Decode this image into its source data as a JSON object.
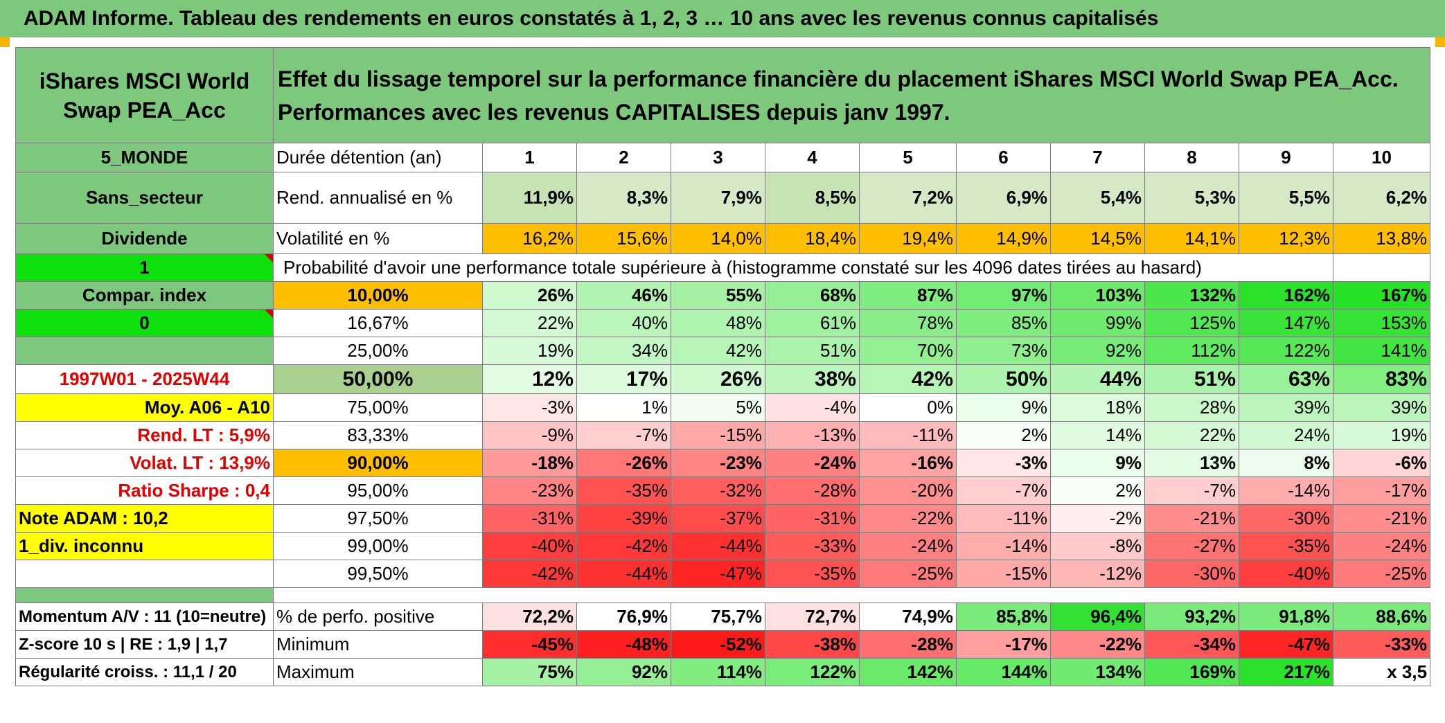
{
  "title": "ADAM Informe. Tableau des rendements en euros constatés à 1, 2, 3 … 10 ans avec les revenus connus capitalisés",
  "fund_name": "iShares MSCI World Swap PEA_Acc",
  "description": "Effet du lissage temporel sur la performance financière du placement iShares MSCI World Swap PEA_Acc. Performances avec les revenus CAPITALISES depuis janv 1997.",
  "left_col": {
    "zone": "5_MONDE",
    "sector": "Sans_secteur",
    "income": "Dividende",
    "flag1": "1",
    "compar": "Compar. index",
    "flag0": "0",
    "period": "1997W01 - 2025W44",
    "avg": "Moy. A06 - A10",
    "rend_lt": "Rend. LT :   5,9%",
    "volat_lt": "Volat. LT :   13,9%",
    "sharpe": "Ratio Sharpe :    0,4",
    "note": "Note ADAM : 10,2",
    "div": "1_div. inconnu",
    "momentum": "Momentum A/V : 11 (10=neutre)",
    "zscore": "Z-score 10 s | RE : 1,9 | 1,7",
    "regularite": "Régularité croiss. : 11,1 / 20"
  },
  "labels": {
    "duration": "Durée détention (an)",
    "rend": "Rend. annualisé en %",
    "vol": "Volatilité en %",
    "prob": "Probabilité d'avoir une performance totale supérieure à (histogramme constaté sur les 4096 dates tirées au hasard)",
    "pos": "% de perfo. positive",
    "min": "Minimum",
    "max": "Maximum"
  },
  "years": [
    "1",
    "2",
    "3",
    "4",
    "5",
    "6",
    "7",
    "8",
    "9",
    "10"
  ],
  "rend": [
    "11,9%",
    "8,3%",
    "7,9%",
    "8,5%",
    "7,2%",
    "6,9%",
    "5,4%",
    "5,3%",
    "5,5%",
    "6,2%"
  ],
  "vol": [
    "16,2%",
    "15,6%",
    "14,0%",
    "18,4%",
    "19,4%",
    "14,9%",
    "14,5%",
    "14,1%",
    "12,3%",
    "13,8%"
  ],
  "quantiles": [
    {
      "p": "10,00%",
      "vals": [
        "26%",
        "46%",
        "55%",
        "68%",
        "87%",
        "97%",
        "103%",
        "132%",
        "162%",
        "167%"
      ],
      "bold": true
    },
    {
      "p": "16,67%",
      "vals": [
        "22%",
        "40%",
        "48%",
        "61%",
        "78%",
        "85%",
        "99%",
        "125%",
        "147%",
        "153%"
      ],
      "bold": false
    },
    {
      "p": "25,00%",
      "vals": [
        "19%",
        "34%",
        "42%",
        "51%",
        "70%",
        "73%",
        "92%",
        "112%",
        "122%",
        "141%"
      ],
      "bold": false
    },
    {
      "p": "50,00%",
      "vals": [
        "12%",
        "17%",
        "26%",
        "38%",
        "42%",
        "50%",
        "44%",
        "51%",
        "63%",
        "83%"
      ],
      "bold": true
    },
    {
      "p": "75,00%",
      "vals": [
        "-3%",
        "1%",
        "5%",
        "-4%",
        "0%",
        "9%",
        "18%",
        "28%",
        "39%",
        "39%"
      ],
      "bold": false
    },
    {
      "p": "83,33%",
      "vals": [
        "-9%",
        "-7%",
        "-15%",
        "-13%",
        "-11%",
        "2%",
        "14%",
        "22%",
        "24%",
        "19%"
      ],
      "bold": false
    },
    {
      "p": "90,00%",
      "vals": [
        "-18%",
        "-26%",
        "-23%",
        "-24%",
        "-16%",
        "-3%",
        "9%",
        "13%",
        "8%",
        "-6%"
      ],
      "bold": true
    },
    {
      "p": "95,00%",
      "vals": [
        "-23%",
        "-35%",
        "-32%",
        "-28%",
        "-20%",
        "-7%",
        "2%",
        "-7%",
        "-14%",
        "-17%"
      ],
      "bold": false
    },
    {
      "p": "97,50%",
      "vals": [
        "-31%",
        "-39%",
        "-37%",
        "-31%",
        "-22%",
        "-11%",
        "-2%",
        "-21%",
        "-30%",
        "-21%"
      ],
      "bold": false
    },
    {
      "p": "99,00%",
      "vals": [
        "-40%",
        "-42%",
        "-44%",
        "-33%",
        "-24%",
        "-14%",
        "-8%",
        "-27%",
        "-35%",
        "-24%"
      ],
      "bold": false
    },
    {
      "p": "99,50%",
      "vals": [
        "-42%",
        "-44%",
        "-47%",
        "-35%",
        "-25%",
        "-15%",
        "-12%",
        "-30%",
        "-40%",
        "-25%"
      ],
      "bold": false
    }
  ],
  "pos": [
    "72,2%",
    "76,9%",
    "75,7%",
    "72,7%",
    "74,9%",
    "85,8%",
    "96,4%",
    "93,2%",
    "91,8%",
    "88,6%"
  ],
  "min": [
    "-45%",
    "-48%",
    "-52%",
    "-38%",
    "-28%",
    "-17%",
    "-22%",
    "-34%",
    "-47%",
    "-33%"
  ],
  "max": [
    "75%",
    "92%",
    "114%",
    "122%",
    "142%",
    "144%",
    "134%",
    "169%",
    "217%",
    "x 3,5"
  ],
  "colors": {
    "header_green": "#7ec87e",
    "bright_green": "#0ee00e",
    "yellow": "#ffff00",
    "orange": "#ffbf00",
    "red_text": "#e00000"
  }
}
